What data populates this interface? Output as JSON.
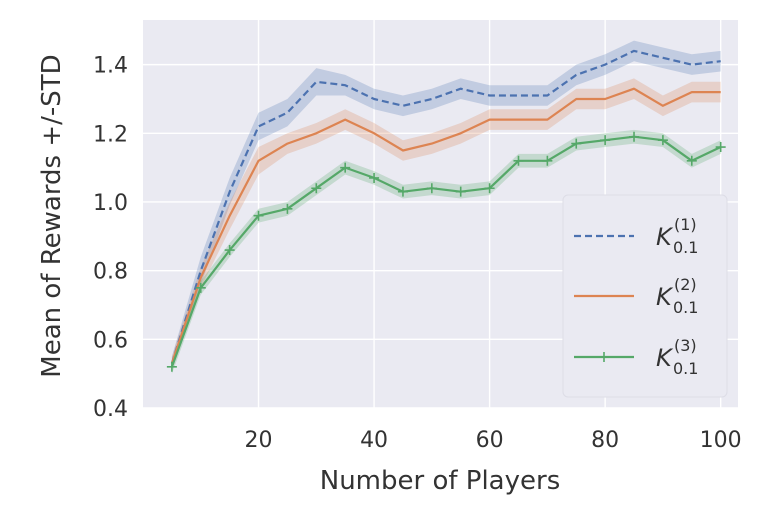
{
  "colors": {
    "plot_bg": "#EAEAF2",
    "grid": "#FFFFFF",
    "text": "#333333"
  },
  "chart_data": {
    "type": "line",
    "title": "",
    "xlabel": "Number of Players",
    "ylabel": "Mean of Rewards +/-STD",
    "xlim": [
      0,
      103
    ],
    "ylim": [
      0.4,
      1.53
    ],
    "xticks": [
      20,
      40,
      60,
      80,
      100
    ],
    "yticks": [
      0.4,
      0.6,
      0.8,
      1.0,
      1.2,
      1.4
    ],
    "xtick_labels": [
      "20",
      "40",
      "60",
      "80",
      "100"
    ],
    "ytick_labels": [
      "0.4",
      "0.6",
      "0.8",
      "1.0",
      "1.2",
      "1.4"
    ],
    "grid": true,
    "legend_position": "lower-right",
    "x": [
      5,
      10,
      15,
      20,
      25,
      30,
      35,
      40,
      45,
      50,
      55,
      60,
      65,
      70,
      75,
      80,
      85,
      90,
      95,
      100
    ],
    "series": [
      {
        "name": "K",
        "name_sub": "0.1",
        "name_sup": "(1)",
        "color": "#4C72B0",
        "linestyle": "dashed",
        "marker": "none",
        "values": [
          0.53,
          0.8,
          1.03,
          1.22,
          1.26,
          1.35,
          1.34,
          1.3,
          1.28,
          1.3,
          1.33,
          1.31,
          1.31,
          1.31,
          1.37,
          1.4,
          1.44,
          1.42,
          1.4,
          1.41
        ],
        "std": [
          0.02,
          0.04,
          0.04,
          0.04,
          0.04,
          0.04,
          0.03,
          0.03,
          0.03,
          0.03,
          0.03,
          0.03,
          0.03,
          0.03,
          0.03,
          0.03,
          0.03,
          0.03,
          0.03,
          0.03
        ]
      },
      {
        "name": "K",
        "name_sub": "0.1",
        "name_sup": "(2)",
        "color": "#DD8452",
        "linestyle": "solid",
        "marker": "none",
        "values": [
          0.53,
          0.78,
          0.96,
          1.12,
          1.17,
          1.2,
          1.24,
          1.2,
          1.15,
          1.17,
          1.2,
          1.24,
          1.24,
          1.24,
          1.3,
          1.3,
          1.33,
          1.28,
          1.32,
          1.32
        ],
        "std": [
          0.02,
          0.03,
          0.04,
          0.04,
          0.03,
          0.03,
          0.03,
          0.03,
          0.03,
          0.03,
          0.03,
          0.03,
          0.03,
          0.03,
          0.03,
          0.03,
          0.03,
          0.03,
          0.03,
          0.03
        ]
      },
      {
        "name": "K",
        "name_sub": "0.1",
        "name_sup": "(3)",
        "color": "#55A868",
        "linestyle": "solid",
        "marker": "plus",
        "values": [
          0.52,
          0.75,
          0.86,
          0.96,
          0.98,
          1.04,
          1.1,
          1.07,
          1.03,
          1.04,
          1.03,
          1.04,
          1.12,
          1.12,
          1.17,
          1.18,
          1.19,
          1.18,
          1.12,
          1.16
        ],
        "std": [
          0.02,
          0.02,
          0.02,
          0.02,
          0.02,
          0.02,
          0.02,
          0.02,
          0.02,
          0.02,
          0.02,
          0.02,
          0.02,
          0.02,
          0.02,
          0.02,
          0.02,
          0.02,
          0.02,
          0.02
        ]
      }
    ]
  }
}
